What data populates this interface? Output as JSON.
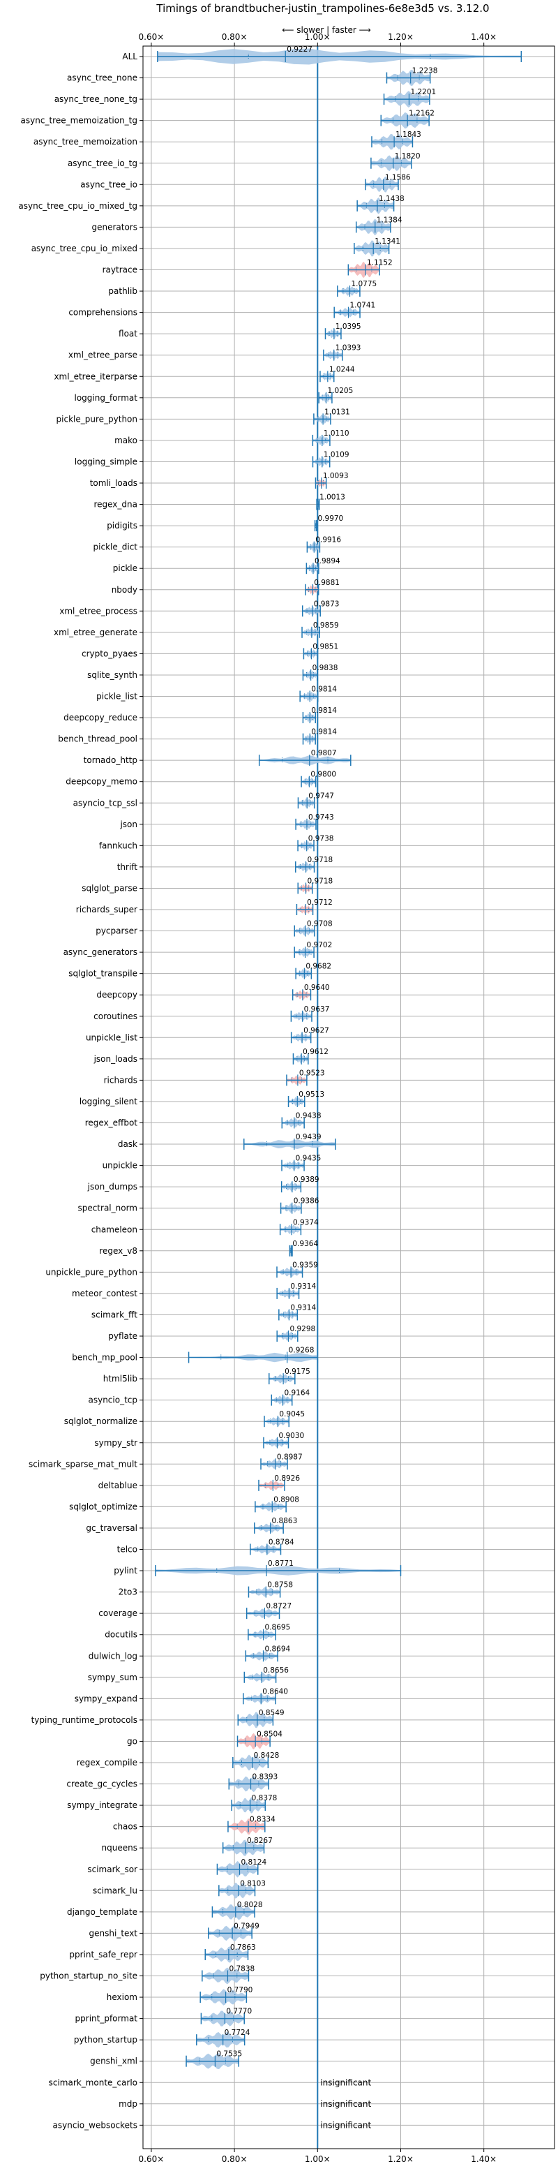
{
  "chart_data": {
    "type": "violin",
    "title": "Timings of brandtbucher-justin_trampolines-6e8e3d5 vs. 3.12.0",
    "direction_annotation": "⟵ slower | faster ⟶",
    "xlim": [
      0.58,
      1.57
    ],
    "xticks": [
      0.6,
      0.8,
      1.0,
      1.2,
      1.4
    ],
    "xtick_labels": [
      "0.60×",
      "0.80×",
      "1.00×",
      "1.20×",
      "1.40×"
    ],
    "grid": true,
    "insignificant_label": "insignificant",
    "benchmarks": [
      {
        "name": "ALL",
        "value": 0.9227
      },
      {
        "name": "async_tree_none",
        "value": 1.2238
      },
      {
        "name": "async_tree_none_tg",
        "value": 1.2201
      },
      {
        "name": "async_tree_memoization_tg",
        "value": 1.2162
      },
      {
        "name": "async_tree_memoization",
        "value": 1.1843
      },
      {
        "name": "async_tree_io_tg",
        "value": 1.182
      },
      {
        "name": "async_tree_io",
        "value": 1.1586
      },
      {
        "name": "async_tree_cpu_io_mixed_tg",
        "value": 1.1438
      },
      {
        "name": "generators",
        "value": 1.1384
      },
      {
        "name": "async_tree_cpu_io_mixed",
        "value": 1.1341
      },
      {
        "name": "raytrace",
        "value": 1.1152
      },
      {
        "name": "pathlib",
        "value": 1.0775
      },
      {
        "name": "comprehensions",
        "value": 1.0741
      },
      {
        "name": "float",
        "value": 1.0395
      },
      {
        "name": "xml_etree_parse",
        "value": 1.0393
      },
      {
        "name": "xml_etree_iterparse",
        "value": 1.0244
      },
      {
        "name": "logging_format",
        "value": 1.0205
      },
      {
        "name": "pickle_pure_python",
        "value": 1.0131
      },
      {
        "name": "mako",
        "value": 1.011
      },
      {
        "name": "logging_simple",
        "value": 1.0109
      },
      {
        "name": "tomli_loads",
        "value": 1.0093
      },
      {
        "name": "regex_dna",
        "value": 1.0013
      },
      {
        "name": "pidigits",
        "value": 0.997
      },
      {
        "name": "pickle_dict",
        "value": 0.9916
      },
      {
        "name": "pickle",
        "value": 0.9894
      },
      {
        "name": "nbody",
        "value": 0.9881
      },
      {
        "name": "xml_etree_process",
        "value": 0.9873
      },
      {
        "name": "xml_etree_generate",
        "value": 0.9859
      },
      {
        "name": "crypto_pyaes",
        "value": 0.9851
      },
      {
        "name": "sqlite_synth",
        "value": 0.9838
      },
      {
        "name": "pickle_list",
        "value": 0.9814
      },
      {
        "name": "deepcopy_reduce",
        "value": 0.9814
      },
      {
        "name": "bench_thread_pool",
        "value": 0.9814
      },
      {
        "name": "tornado_http",
        "value": 0.9807
      },
      {
        "name": "deepcopy_memo",
        "value": 0.98
      },
      {
        "name": "asyncio_tcp_ssl",
        "value": 0.9747
      },
      {
        "name": "json",
        "value": 0.9743
      },
      {
        "name": "fannkuch",
        "value": 0.9738
      },
      {
        "name": "thrift",
        "value": 0.9718
      },
      {
        "name": "sqlglot_parse",
        "value": 0.9718
      },
      {
        "name": "richards_super",
        "value": 0.9712
      },
      {
        "name": "pycparser",
        "value": 0.9708
      },
      {
        "name": "async_generators",
        "value": 0.9702
      },
      {
        "name": "sqlglot_transpile",
        "value": 0.9682
      },
      {
        "name": "deepcopy",
        "value": 0.964
      },
      {
        "name": "coroutines",
        "value": 0.9637
      },
      {
        "name": "unpickle_list",
        "value": 0.9627
      },
      {
        "name": "json_loads",
        "value": 0.9612
      },
      {
        "name": "richards",
        "value": 0.9523
      },
      {
        "name": "logging_silent",
        "value": 0.9513
      },
      {
        "name": "regex_effbot",
        "value": 0.9438
      },
      {
        "name": "dask",
        "value": 0.9439
      },
      {
        "name": "unpickle",
        "value": 0.9435
      },
      {
        "name": "json_dumps",
        "value": 0.9389
      },
      {
        "name": "spectral_norm",
        "value": 0.9386
      },
      {
        "name": "chameleon",
        "value": 0.9374
      },
      {
        "name": "regex_v8",
        "value": 0.9364
      },
      {
        "name": "unpickle_pure_python",
        "value": 0.9359
      },
      {
        "name": "meteor_contest",
        "value": 0.9314
      },
      {
        "name": "scimark_fft",
        "value": 0.9314
      },
      {
        "name": "pyflate",
        "value": 0.9298
      },
      {
        "name": "bench_mp_pool",
        "value": 0.9268
      },
      {
        "name": "html5lib",
        "value": 0.9175
      },
      {
        "name": "asyncio_tcp",
        "value": 0.9164
      },
      {
        "name": "sqlglot_normalize",
        "value": 0.9045
      },
      {
        "name": "sympy_str",
        "value": 0.903
      },
      {
        "name": "scimark_sparse_mat_mult",
        "value": 0.8987
      },
      {
        "name": "deltablue",
        "value": 0.8926
      },
      {
        "name": "sqlglot_optimize",
        "value": 0.8908
      },
      {
        "name": "gc_traversal",
        "value": 0.8863
      },
      {
        "name": "telco",
        "value": 0.8784
      },
      {
        "name": "pylint",
        "value": 0.8771
      },
      {
        "name": "2to3",
        "value": 0.8758
      },
      {
        "name": "coverage",
        "value": 0.8727
      },
      {
        "name": "docutils",
        "value": 0.8695
      },
      {
        "name": "dulwich_log",
        "value": 0.8694
      },
      {
        "name": "sympy_sum",
        "value": 0.8656
      },
      {
        "name": "sympy_expand",
        "value": 0.864
      },
      {
        "name": "typing_runtime_protocols",
        "value": 0.8549
      },
      {
        "name": "go",
        "value": 0.8504
      },
      {
        "name": "regex_compile",
        "value": 0.8428
      },
      {
        "name": "create_gc_cycles",
        "value": 0.8393
      },
      {
        "name": "sympy_integrate",
        "value": 0.8378
      },
      {
        "name": "chaos",
        "value": 0.8334
      },
      {
        "name": "nqueens",
        "value": 0.8267
      },
      {
        "name": "scimark_sor",
        "value": 0.8124
      },
      {
        "name": "scimark_lu",
        "value": 0.8103
      },
      {
        "name": "django_template",
        "value": 0.8028
      },
      {
        "name": "genshi_text",
        "value": 0.7949
      },
      {
        "name": "pprint_safe_repr",
        "value": 0.7863
      },
      {
        "name": "python_startup_no_site",
        "value": 0.7838
      },
      {
        "name": "hexiom",
        "value": 0.779
      },
      {
        "name": "pprint_pformat",
        "value": 0.777
      },
      {
        "name": "python_startup",
        "value": 0.7724
      },
      {
        "name": "genshi_xml",
        "value": 0.7535
      },
      {
        "name": "scimark_monte_carlo",
        "value": null,
        "insignificant": true
      },
      {
        "name": "mdp",
        "value": null,
        "insignificant": true
      },
      {
        "name": "asyncio_websockets",
        "value": null,
        "insignificant": true
      }
    ],
    "colors": {
      "violin_blue": "#a9c8e6",
      "violin_red": "#f4b6b6",
      "line_blue": "#1f77b4",
      "grid": "#b0b0b0"
    }
  }
}
